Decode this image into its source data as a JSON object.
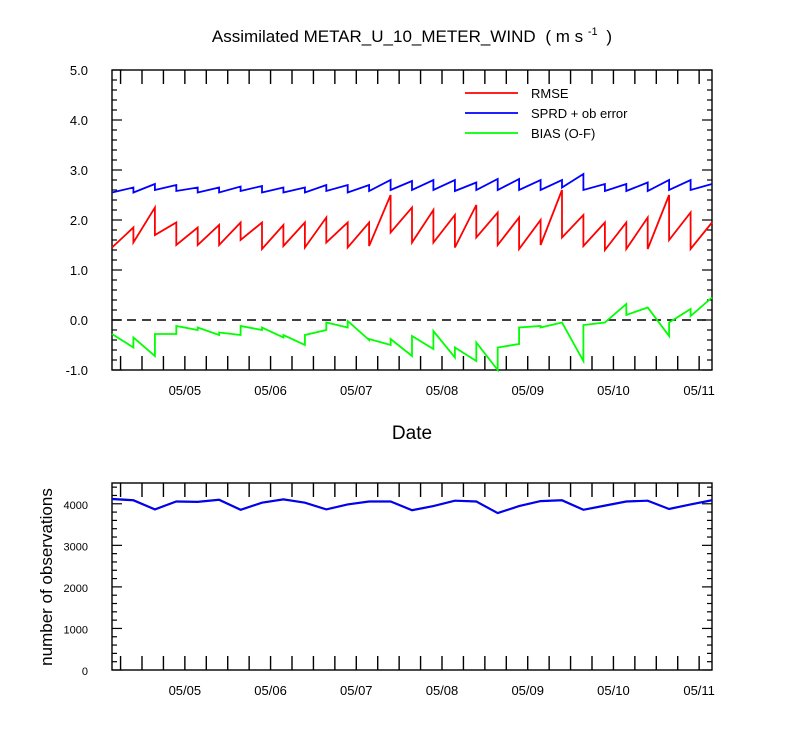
{
  "chart_data": [
    {
      "type": "line",
      "title_main": "Assimilated METAR_U_10_METER_WIND",
      "title_units": "( m s",
      "title_units_sup": "-1",
      "title_units_close": ")",
      "xlabel": "Date",
      "ylabel": "",
      "ylim": [
        -1.0,
        5.0
      ],
      "yticks": [
        "-1.0",
        "0.0",
        "1.0",
        "2.0",
        "3.0",
        "4.0",
        "5.0"
      ],
      "ytick_values": [
        -1,
        0,
        1,
        2,
        3,
        4,
        5
      ],
      "xlim": [
        -0.85,
        6.15
      ],
      "xticks": [
        "05/05",
        "05/06",
        "05/07",
        "05/08",
        "05/09",
        "05/10",
        "05/11"
      ],
      "xtick_values": [
        0,
        1,
        2,
        3,
        4,
        5,
        6
      ],
      "zero_line": true,
      "legend_position": "top-right",
      "series": [
        {
          "name": "RMSE",
          "color": "#ff0000",
          "x": [
            -0.85,
            -0.6,
            -0.6,
            -0.35,
            -0.35,
            -0.1,
            -0.1,
            0.15,
            0.15,
            0.4,
            0.4,
            0.65,
            0.65,
            0.9,
            0.9,
            1.15,
            1.15,
            1.4,
            1.4,
            1.65,
            1.65,
            1.9,
            1.9,
            2.15,
            2.15,
            2.4,
            2.4,
            2.65,
            2.65,
            2.9,
            2.9,
            3.15,
            3.15,
            3.4,
            3.4,
            3.65,
            3.65,
            3.9,
            3.9,
            4.15,
            4.15,
            4.4,
            4.4,
            4.65,
            4.65,
            4.9,
            4.9,
            5.15,
            5.15,
            5.4,
            5.4,
            5.65,
            5.65,
            5.9,
            5.9,
            6.15
          ],
          "y": [
            1.45,
            1.85,
            1.55,
            2.25,
            1.7,
            1.95,
            1.5,
            1.85,
            1.5,
            1.9,
            1.5,
            1.95,
            1.6,
            1.95,
            1.42,
            1.9,
            1.48,
            1.95,
            1.45,
            2.05,
            1.55,
            1.95,
            1.45,
            1.95,
            1.48,
            2.5,
            1.75,
            2.25,
            1.55,
            2.2,
            1.55,
            2.1,
            1.45,
            2.3,
            1.65,
            2.15,
            1.5,
            2.05,
            1.42,
            2.0,
            1.5,
            2.6,
            1.65,
            2.1,
            1.48,
            1.95,
            1.4,
            1.95,
            1.42,
            2.05,
            1.42,
            2.5,
            1.6,
            2.15,
            1.42,
            1.95
          ]
        },
        {
          "name": "SPRD + ob error",
          "color": "#0000ff",
          "x": [
            -0.85,
            -0.6,
            -0.6,
            -0.35,
            -0.35,
            -0.1,
            -0.1,
            0.15,
            0.15,
            0.4,
            0.4,
            0.65,
            0.65,
            0.9,
            0.9,
            1.15,
            1.15,
            1.4,
            1.4,
            1.65,
            1.65,
            1.9,
            1.9,
            2.15,
            2.15,
            2.4,
            2.4,
            2.65,
            2.65,
            2.9,
            2.9,
            3.15,
            3.15,
            3.4,
            3.4,
            3.65,
            3.65,
            3.9,
            3.9,
            4.15,
            4.15,
            4.4,
            4.4,
            4.65,
            4.65,
            4.9,
            4.9,
            5.15,
            5.15,
            5.4,
            5.4,
            5.65,
            5.65,
            5.9,
            5.9,
            6.15
          ],
          "y": [
            2.55,
            2.65,
            2.55,
            2.72,
            2.6,
            2.7,
            2.58,
            2.65,
            2.55,
            2.65,
            2.55,
            2.67,
            2.58,
            2.68,
            2.55,
            2.65,
            2.55,
            2.65,
            2.55,
            2.7,
            2.58,
            2.7,
            2.55,
            2.7,
            2.58,
            2.8,
            2.6,
            2.78,
            2.6,
            2.8,
            2.6,
            2.8,
            2.58,
            2.75,
            2.6,
            2.82,
            2.6,
            2.82,
            2.6,
            2.8,
            2.6,
            2.8,
            2.65,
            2.92,
            2.6,
            2.72,
            2.58,
            2.72,
            2.58,
            2.75,
            2.58,
            2.8,
            2.6,
            2.8,
            2.6,
            2.72
          ]
        },
        {
          "name": "BIAS (O-F)",
          "color": "#00ff00",
          "x": [
            -0.85,
            -0.6,
            -0.6,
            -0.35,
            -0.35,
            -0.1,
            -0.1,
            0.15,
            0.15,
            0.4,
            0.4,
            0.65,
            0.65,
            0.9,
            0.9,
            1.15,
            1.15,
            1.4,
            1.4,
            1.65,
            1.65,
            1.9,
            1.9,
            2.15,
            2.15,
            2.4,
            2.4,
            2.65,
            2.65,
            2.9,
            2.9,
            3.15,
            3.15,
            3.4,
            3.4,
            3.65,
            3.65,
            3.9,
            3.9,
            4.15,
            4.15,
            4.4,
            4.4,
            4.65,
            4.65,
            4.9,
            4.9,
            5.15,
            5.15,
            5.4,
            5.4,
            5.65,
            5.65,
            5.9,
            5.9,
            6.15
          ],
          "y": [
            -0.28,
            -0.55,
            -0.35,
            -0.72,
            -0.28,
            -0.28,
            -0.12,
            -0.2,
            -0.15,
            -0.3,
            -0.25,
            -0.3,
            -0.12,
            -0.2,
            -0.15,
            -0.35,
            -0.3,
            -0.5,
            -0.3,
            -0.2,
            -0.05,
            -0.15,
            -0.02,
            -0.4,
            -0.38,
            -0.5,
            -0.38,
            -0.72,
            -0.32,
            -0.58,
            -0.22,
            -0.75,
            -0.55,
            -0.82,
            -0.45,
            -1.0,
            -0.55,
            -0.48,
            -0.15,
            -0.12,
            -0.15,
            -0.05,
            -0.05,
            -0.82,
            -0.1,
            -0.05,
            -0.05,
            0.32,
            0.1,
            0.25,
            0.25,
            -0.32,
            -0.05,
            0.22,
            0.08,
            0.45
          ]
        }
      ]
    },
    {
      "type": "line",
      "title": "",
      "xlabel": "",
      "ylabel": "number of observations",
      "ylim": [
        0,
        4500
      ],
      "yticks": [
        "0",
        "1000",
        "2000",
        "3000",
        "4000"
      ],
      "ytick_values": [
        0,
        1000,
        2000,
        3000,
        4000
      ],
      "xlim": [
        -0.85,
        6.15
      ],
      "xticks": [
        "05/05",
        "05/06",
        "05/07",
        "05/08",
        "05/09",
        "05/10",
        "05/11"
      ],
      "xtick_values": [
        0,
        1,
        2,
        3,
        4,
        5,
        6
      ],
      "series": [
        {
          "color": "#000080",
          "x": [
            -0.85,
            -0.6,
            -0.35,
            -0.1,
            0.15,
            0.4,
            0.65,
            0.9,
            1.15,
            1.4,
            1.65,
            1.9,
            2.15,
            2.4,
            2.65,
            2.9,
            3.15,
            3.4,
            3.65,
            3.9,
            4.15,
            4.4,
            4.65,
            4.9,
            5.15,
            5.4,
            5.65,
            5.9,
            6.15
          ],
          "y": [
            4120,
            4090,
            3870,
            4060,
            4050,
            4100,
            3860,
            4030,
            4110,
            4030,
            3870,
            3990,
            4060,
            4060,
            3850,
            3950,
            4080,
            4060,
            3780,
            3950,
            4070,
            4090,
            3860,
            3960,
            4060,
            4080,
            3880,
            3990,
            4090
          ]
        },
        {
          "color": "#0000ff",
          "x": [
            -0.85,
            -0.6,
            -0.35,
            -0.1,
            0.15,
            0.4,
            0.65,
            0.9,
            1.15,
            1.4,
            1.65,
            1.9,
            2.15,
            2.4,
            2.65,
            2.9,
            3.15,
            3.4,
            3.65,
            3.9,
            4.15,
            4.4,
            4.65,
            4.9,
            5.15,
            5.4,
            5.65,
            5.9,
            6.15
          ],
          "y": [
            4110,
            4080,
            3860,
            4050,
            4040,
            4090,
            3850,
            4020,
            4100,
            4020,
            3860,
            3980,
            4050,
            4050,
            3840,
            3940,
            4070,
            4050,
            3770,
            3940,
            4060,
            4080,
            3850,
            3950,
            4050,
            4070,
            3870,
            3980,
            4080
          ]
        }
      ]
    }
  ]
}
